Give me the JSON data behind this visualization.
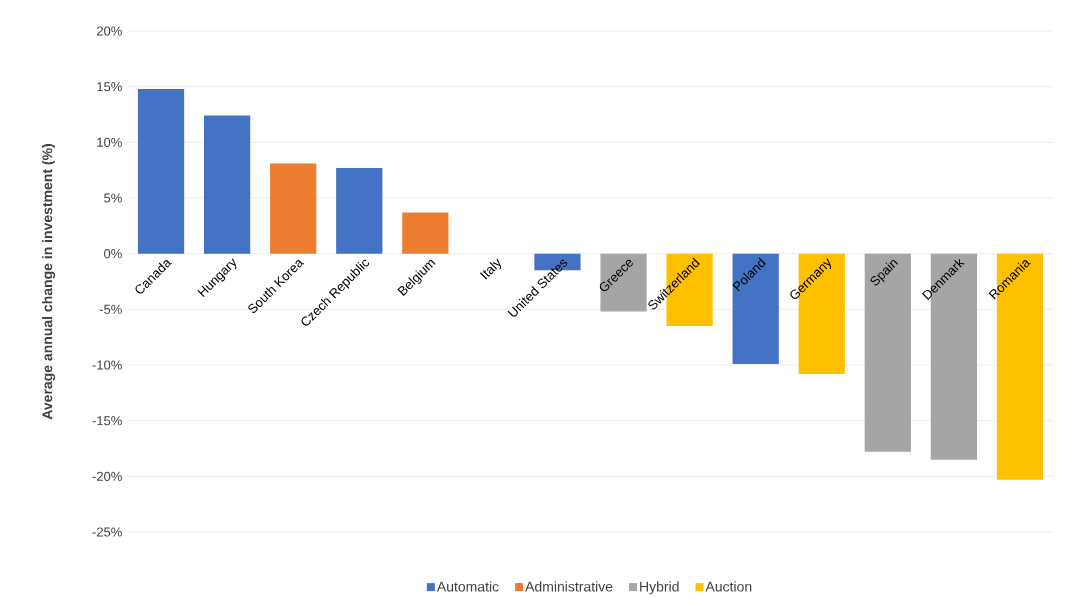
{
  "chart_data": {
    "type": "bar",
    "ylabel": "Average annual change in investment (%)",
    "categories": [
      "Canada",
      "Hungary",
      "South Korea",
      "Czech Republic",
      "Belgium",
      "Italy",
      "United States",
      "Greece",
      "Switzerland",
      "Poland",
      "Germany",
      "Spain",
      "Denmark",
      "Romania"
    ],
    "series": [
      {
        "name": "Automatic",
        "color": "#4472c4",
        "values": [
          14.8,
          12.4,
          null,
          7.7,
          null,
          0,
          -1.5,
          null,
          null,
          -9.9,
          null,
          null,
          null,
          null
        ]
      },
      {
        "name": "Administrative",
        "color": "#ed7d31",
        "values": [
          null,
          null,
          8.1,
          null,
          3.7,
          null,
          null,
          null,
          null,
          null,
          null,
          null,
          null,
          null
        ]
      },
      {
        "name": "Hybrid",
        "color": "#a5a5a5",
        "values": [
          null,
          null,
          null,
          null,
          null,
          null,
          null,
          -5.2,
          null,
          null,
          null,
          -17.8,
          -18.5,
          null
        ]
      },
      {
        "name": "Auction",
        "color": "#ffc000",
        "values": [
          null,
          null,
          null,
          null,
          null,
          null,
          null,
          null,
          -6.5,
          null,
          -10.8,
          null,
          null,
          -20.3
        ]
      }
    ],
    "ylim": [
      -25,
      20
    ],
    "yticks": [
      {
        "value": -25,
        "label": "-25%"
      },
      {
        "value": -20,
        "label": "-20%"
      },
      {
        "value": -15,
        "label": "-15%"
      },
      {
        "value": -10,
        "label": "-10%"
      },
      {
        "value": -5,
        "label": "-5%"
      },
      {
        "value": 0,
        "label": "0%"
      },
      {
        "value": 5,
        "label": "5%"
      },
      {
        "value": 10,
        "label": "10%"
      },
      {
        "value": 15,
        "label": "15%"
      },
      {
        "value": 20,
        "label": "20%"
      }
    ],
    "grid": "y",
    "legend": "bottom"
  }
}
